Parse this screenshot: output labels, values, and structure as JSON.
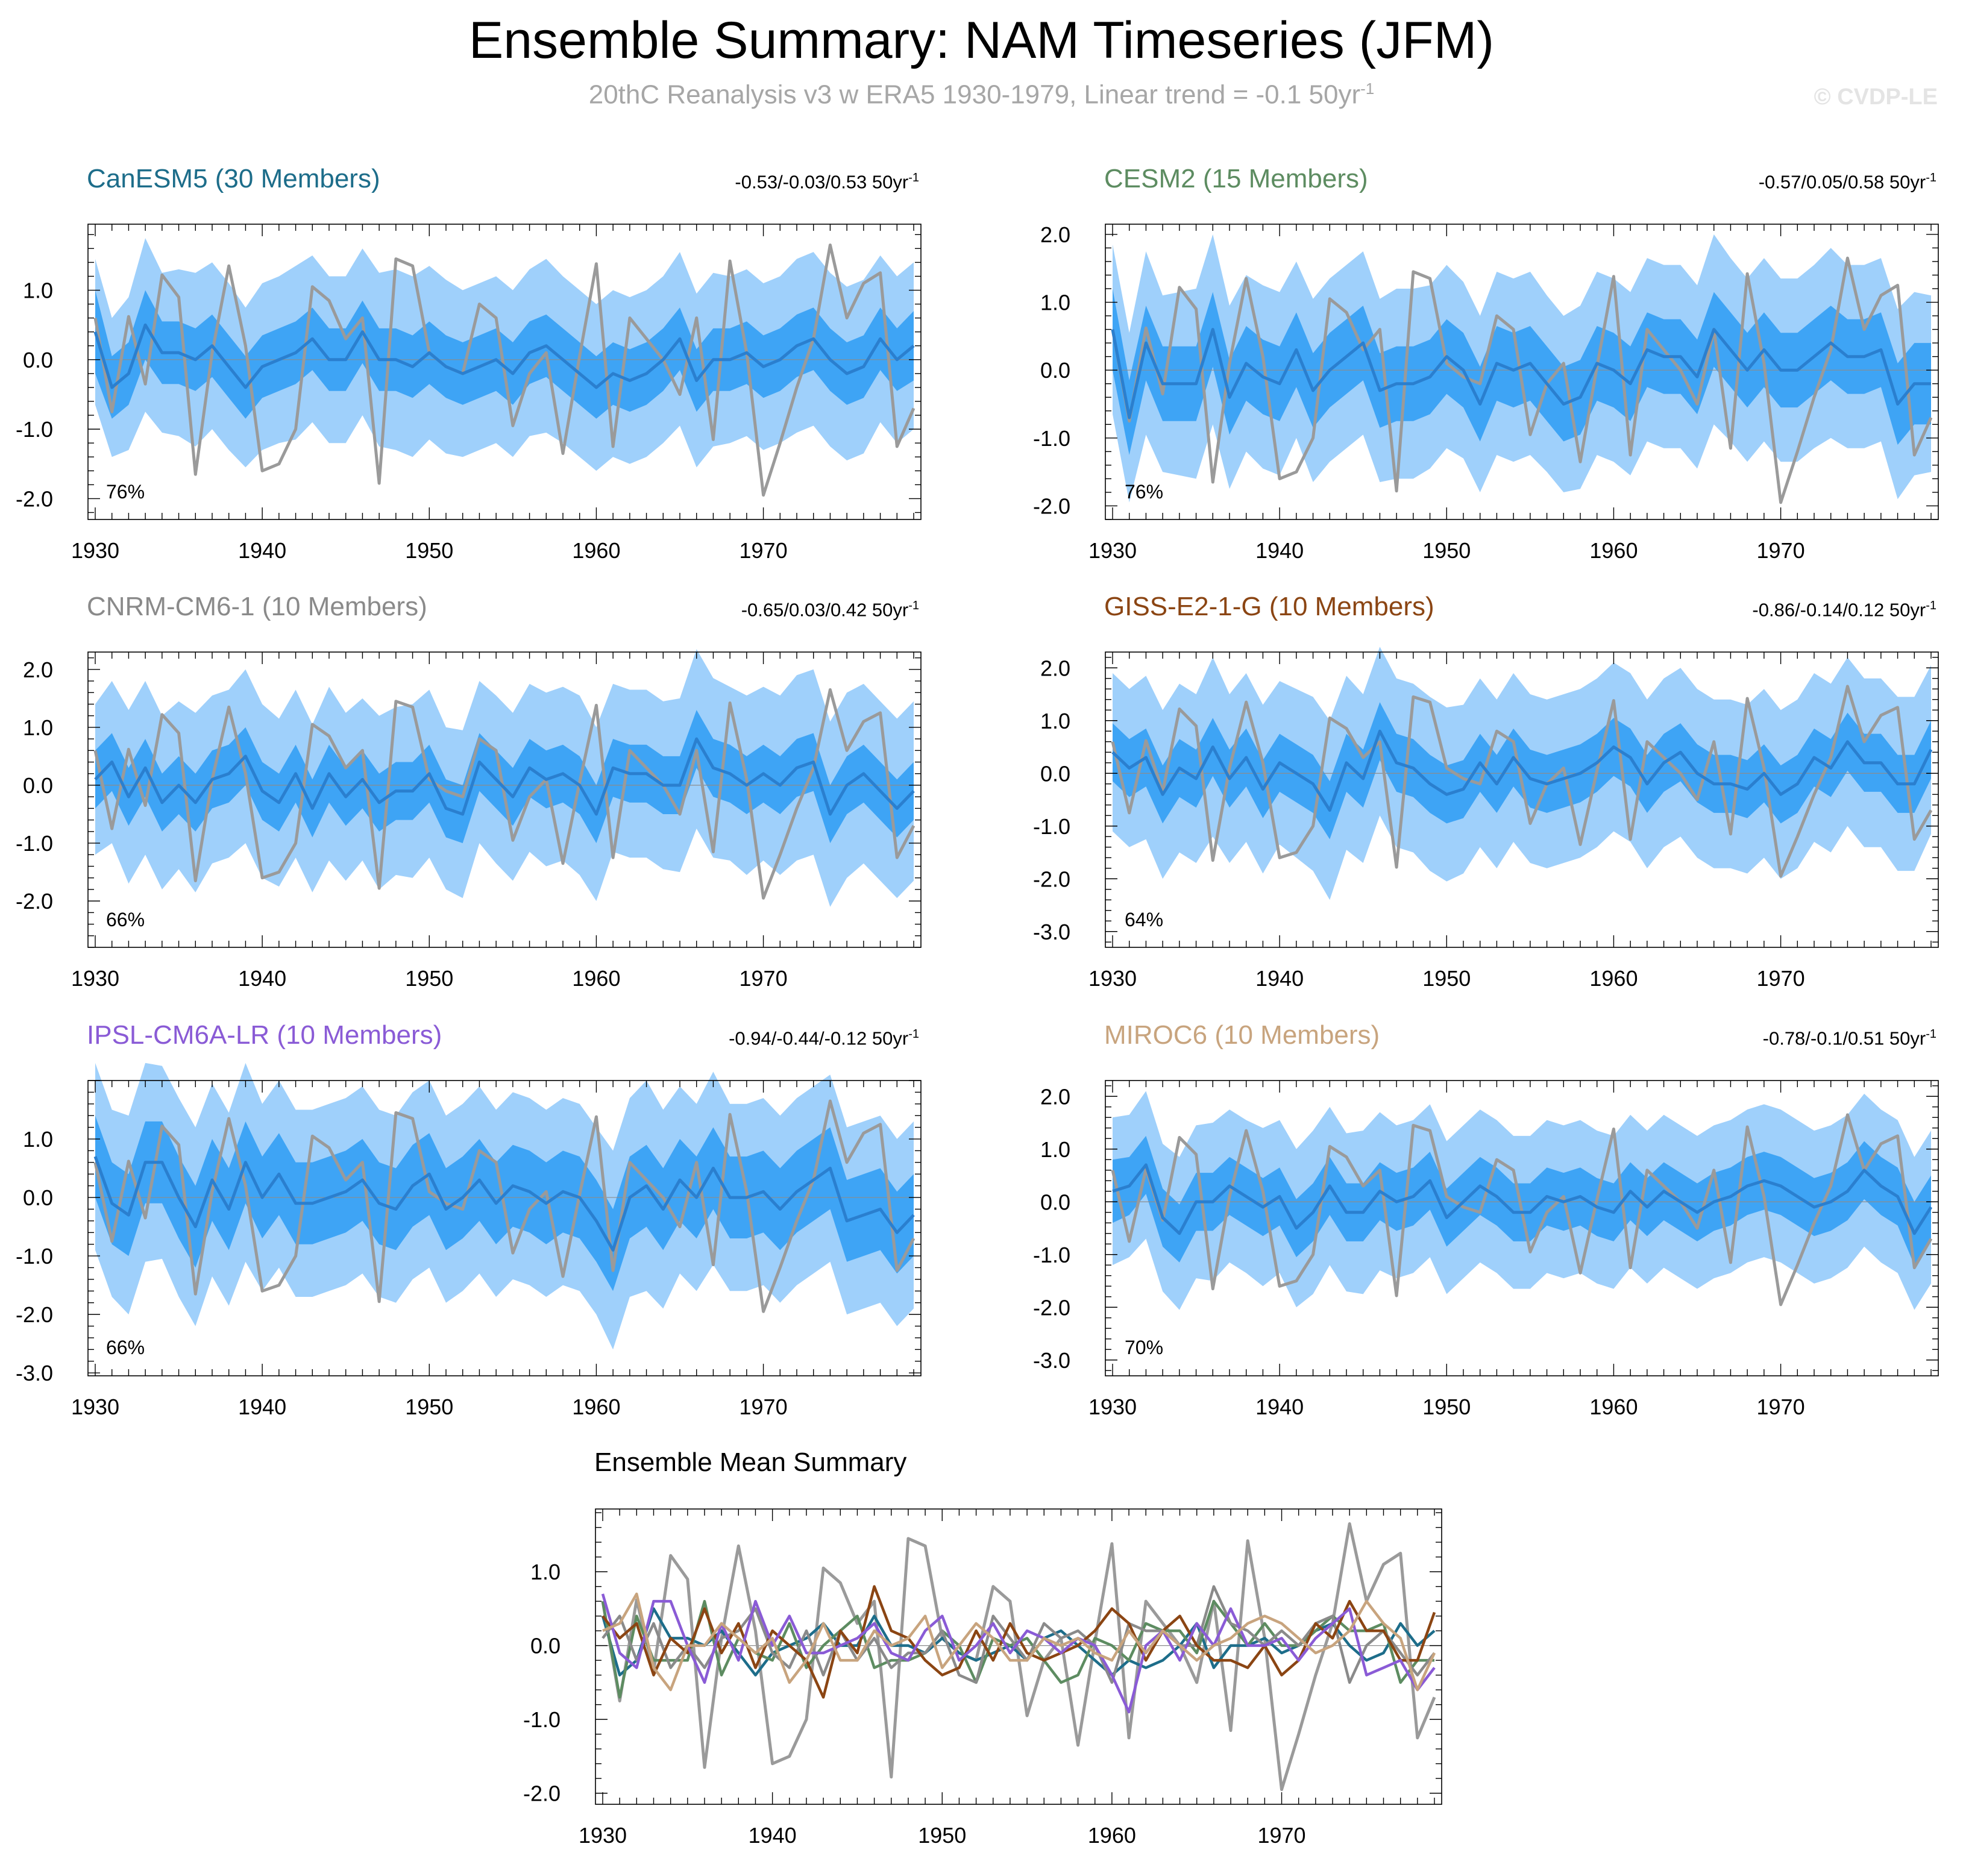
{
  "header": {
    "title": "Ensemble Summary: NAM Timeseries (JFM)",
    "subtitle_main": "20thC Reanalysis v3 w ERA5 1930-1979, Linear trend = -0.1 50yr",
    "subtitle_sup": "-1",
    "credit": "© CVDP-LE"
  },
  "chart_data": {
    "type": "line",
    "x_start": 1930,
    "x_end": 1979,
    "x_ticks": [
      "1930",
      "1940",
      "1950",
      "1960",
      "1970"
    ],
    "observed": {
      "name": "20thC Reanalysis v3 w ERA5",
      "color": "#9a9a9a",
      "values": [
        0.6,
        -0.75,
        0.62,
        -0.35,
        1.22,
        0.9,
        -1.65,
        0.1,
        1.35,
        0.2,
        -1.6,
        -1.5,
        -1.0,
        1.05,
        0.85,
        0.3,
        0.6,
        -1.78,
        1.45,
        1.35,
        0.1,
        -0.1,
        -0.2,
        0.8,
        0.6,
        -0.95,
        -0.2,
        0.1,
        -1.35,
        0.05,
        1.38,
        -1.25,
        0.6,
        0.3,
        0.0,
        -0.5,
        0.6,
        -1.15,
        1.42,
        0.1,
        -1.95,
        -1.2,
        -0.4,
        0.3,
        1.65,
        0.6,
        1.1,
        1.25,
        -1.25,
        -0.7
      ]
    },
    "panels": [
      {
        "name": "CanESM5",
        "title": "CanESM5 (30 Members)",
        "color": "#1d6d8a",
        "range_label": "-0.53/-0.03/0.53 50yr",
        "range_sup": "-1",
        "corr_label": "76%",
        "y_ticks": [
          "1.0",
          "0.0",
          "-1.0",
          "-2.0"
        ],
        "ylim": [
          -2.3,
          1.95
        ],
        "mean": [
          0.4,
          -0.4,
          -0.2,
          0.5,
          0.1,
          0.1,
          0.0,
          0.2,
          -0.1,
          -0.4,
          -0.1,
          0.0,
          0.1,
          0.3,
          0.0,
          0.0,
          0.4,
          0.0,
          0.0,
          -0.1,
          0.1,
          -0.1,
          -0.2,
          -0.1,
          0.0,
          -0.2,
          0.1,
          0.2,
          0.0,
          -0.2,
          -0.4,
          -0.2,
          -0.3,
          -0.2,
          0.0,
          0.3,
          -0.3,
          0.0,
          0.0,
          0.1,
          -0.1,
          0.0,
          0.2,
          0.3,
          0.0,
          -0.2,
          -0.1,
          0.3,
          0.0,
          0.2
        ],
        "band_inner": [
          0.6,
          0.45,
          0.45,
          0.5,
          0.45,
          0.45,
          0.45,
          0.45,
          0.45,
          0.45,
          0.45,
          0.45,
          0.45,
          0.45,
          0.45,
          0.45,
          0.45,
          0.45,
          0.45,
          0.45,
          0.45,
          0.45,
          0.45,
          0.45,
          0.45,
          0.45,
          0.45,
          0.45,
          0.45,
          0.45,
          0.45,
          0.45,
          0.45,
          0.45,
          0.45,
          0.45,
          0.45,
          0.45,
          0.45,
          0.45,
          0.45,
          0.45,
          0.45,
          0.45,
          0.45,
          0.45,
          0.45,
          0.45,
          0.45,
          0.5
        ],
        "band_outer": [
          1.05,
          1.0,
          1.1,
          1.25,
          1.15,
          1.2,
          1.25,
          1.2,
          1.2,
          1.15,
          1.2,
          1.2,
          1.25,
          1.2,
          1.2,
          1.2,
          1.2,
          1.25,
          1.3,
          1.3,
          1.25,
          1.25,
          1.2,
          1.2,
          1.2,
          1.2,
          1.2,
          1.25,
          1.2,
          1.2,
          1.2,
          1.2,
          1.2,
          1.2,
          1.2,
          1.25,
          1.25,
          1.25,
          1.2,
          1.2,
          1.2,
          1.2,
          1.25,
          1.25,
          1.25,
          1.25,
          1.25,
          1.2,
          1.2,
          1.2
        ]
      },
      {
        "name": "CESM2",
        "title": "CESM2 (15 Members)",
        "color": "#5d8c61",
        "range_label": "-0.57/0.05/0.58 50yr",
        "range_sup": "-1",
        "corr_label": "76%",
        "y_ticks": [
          "2.0",
          "1.0",
          "0.0",
          "-1.0",
          "-2.0"
        ],
        "ylim": [
          -2.2,
          2.15
        ],
        "mean": [
          0.6,
          -0.7,
          0.4,
          -0.2,
          -0.2,
          -0.2,
          0.6,
          -0.4,
          0.1,
          -0.1,
          -0.2,
          0.3,
          -0.3,
          0.0,
          0.2,
          0.4,
          -0.3,
          -0.2,
          -0.2,
          -0.1,
          0.2,
          0.0,
          -0.5,
          0.1,
          0.0,
          0.1,
          -0.2,
          -0.5,
          -0.4,
          0.1,
          0.0,
          -0.2,
          0.3,
          0.2,
          0.2,
          -0.1,
          0.6,
          0.3,
          0.0,
          0.3,
          0.0,
          0.0,
          0.2,
          0.4,
          0.2,
          0.2,
          0.3,
          -0.5,
          -0.2,
          -0.2
        ],
        "band_inner": [
          0.6,
          0.55,
          0.55,
          0.55,
          0.55,
          0.55,
          0.55,
          0.55,
          0.55,
          0.55,
          0.55,
          0.55,
          0.55,
          0.55,
          0.55,
          0.55,
          0.55,
          0.55,
          0.55,
          0.55,
          0.55,
          0.55,
          0.55,
          0.55,
          0.55,
          0.55,
          0.55,
          0.55,
          0.55,
          0.55,
          0.55,
          0.55,
          0.55,
          0.55,
          0.55,
          0.55,
          0.55,
          0.55,
          0.55,
          0.55,
          0.55,
          0.55,
          0.55,
          0.55,
          0.55,
          0.55,
          0.55,
          0.6,
          0.6,
          0.6
        ],
        "band_outer": [
          1.25,
          1.25,
          1.35,
          1.3,
          1.35,
          1.4,
          1.4,
          1.35,
          1.3,
          1.35,
          1.35,
          1.3,
          1.35,
          1.35,
          1.35,
          1.35,
          1.35,
          1.4,
          1.4,
          1.35,
          1.35,
          1.3,
          1.3,
          1.35,
          1.35,
          1.35,
          1.3,
          1.3,
          1.35,
          1.35,
          1.35,
          1.35,
          1.35,
          1.35,
          1.35,
          1.35,
          1.4,
          1.35,
          1.35,
          1.35,
          1.35,
          1.35,
          1.35,
          1.4,
          1.35,
          1.35,
          1.35,
          1.4,
          1.35,
          1.3
        ]
      },
      {
        "name": "CNRM-CM6-1",
        "title": "CNRM-CM6-1 (10 Members)",
        "color": "#8a8a8a",
        "range_label": "-0.65/0.03/0.42 50yr",
        "range_sup": "-1",
        "corr_label": "66%",
        "y_ticks": [
          "2.0",
          "1.0",
          "0.0",
          "-1.0",
          "-2.0"
        ],
        "ylim": [
          -2.8,
          2.3
        ],
        "mean": [
          0.1,
          0.4,
          -0.2,
          0.3,
          -0.3,
          0.0,
          -0.3,
          0.1,
          0.2,
          0.5,
          -0.1,
          -0.3,
          0.2,
          -0.4,
          0.2,
          -0.2,
          0.1,
          -0.3,
          -0.1,
          -0.1,
          0.2,
          -0.4,
          -0.5,
          0.4,
          0.1,
          -0.2,
          0.3,
          0.1,
          0.2,
          0.0,
          -0.5,
          0.3,
          0.2,
          0.2,
          0.0,
          0.0,
          0.8,
          0.3,
          0.2,
          0.0,
          0.2,
          0.0,
          0.3,
          0.4,
          -0.5,
          0.0,
          0.2,
          -0.1,
          -0.4,
          -0.1
        ],
        "band_inner": [
          0.5,
          0.5,
          0.5,
          0.5,
          0.5,
          0.5,
          0.5,
          0.5,
          0.5,
          0.5,
          0.5,
          0.5,
          0.5,
          0.5,
          0.5,
          0.5,
          0.5,
          0.5,
          0.5,
          0.5,
          0.5,
          0.5,
          0.5,
          0.5,
          0.5,
          0.5,
          0.5,
          0.5,
          0.5,
          0.5,
          0.5,
          0.5,
          0.5,
          0.5,
          0.5,
          0.5,
          0.5,
          0.5,
          0.5,
          0.5,
          0.5,
          0.5,
          0.5,
          0.5,
          0.5,
          0.5,
          0.5,
          0.5,
          0.5,
          0.5
        ],
        "band_outer": [
          1.3,
          1.4,
          1.5,
          1.5,
          1.5,
          1.45,
          1.55,
          1.45,
          1.45,
          1.5,
          1.5,
          1.45,
          1.45,
          1.45,
          1.5,
          1.45,
          1.4,
          1.5,
          1.45,
          1.5,
          1.45,
          1.4,
          1.45,
          1.4,
          1.45,
          1.45,
          1.45,
          1.5,
          1.5,
          1.55,
          1.5,
          1.45,
          1.45,
          1.45,
          1.45,
          1.5,
          1.55,
          1.55,
          1.5,
          1.55,
          1.5,
          1.55,
          1.6,
          1.6,
          1.6,
          1.6,
          1.55,
          1.55,
          1.55,
          1.55
        ]
      },
      {
        "name": "GISS-E2-1-G",
        "title": "GISS-E2-1-G (10 Members)",
        "color": "#8b4513",
        "range_label": "-0.86/-0.14/0.12 50yr",
        "range_sup": "-1",
        "corr_label": "64%",
        "y_ticks": [
          "2.0",
          "1.0",
          "0.0",
          "-1.0",
          "-2.0",
          "-3.0"
        ],
        "ylim": [
          -3.3,
          2.3
        ],
        "mean": [
          0.4,
          0.1,
          0.3,
          -0.4,
          0.1,
          -0.1,
          0.5,
          -0.1,
          0.3,
          -0.3,
          0.2,
          0.0,
          -0.2,
          -0.7,
          0.2,
          -0.1,
          0.8,
          0.2,
          0.1,
          -0.2,
          -0.4,
          -0.3,
          0.2,
          -0.2,
          0.3,
          -0.1,
          -0.2,
          -0.1,
          0.0,
          0.2,
          0.5,
          0.3,
          -0.2,
          0.2,
          0.4,
          0.0,
          -0.2,
          -0.2,
          -0.3,
          0.0,
          -0.4,
          -0.2,
          0.3,
          0.1,
          0.6,
          0.2,
          0.2,
          -0.2,
          -0.2,
          0.45
        ],
        "band_inner": [
          0.55,
          0.55,
          0.55,
          0.55,
          0.55,
          0.55,
          0.55,
          0.55,
          0.55,
          0.55,
          0.55,
          0.55,
          0.55,
          0.55,
          0.55,
          0.55,
          0.55,
          0.55,
          0.55,
          0.55,
          0.55,
          0.55,
          0.55,
          0.55,
          0.55,
          0.55,
          0.55,
          0.55,
          0.55,
          0.55,
          0.55,
          0.55,
          0.55,
          0.55,
          0.55,
          0.55,
          0.55,
          0.55,
          0.55,
          0.55,
          0.55,
          0.55,
          0.55,
          0.55,
          0.55,
          0.55,
          0.55,
          0.55,
          0.55,
          0.55
        ],
        "band_outer": [
          1.5,
          1.5,
          1.55,
          1.6,
          1.6,
          1.6,
          1.7,
          1.6,
          1.6,
          1.6,
          1.55,
          1.6,
          1.65,
          1.7,
          1.65,
          1.6,
          1.6,
          1.6,
          1.6,
          1.65,
          1.65,
          1.6,
          1.6,
          1.6,
          1.6,
          1.6,
          1.6,
          1.6,
          1.6,
          1.6,
          1.6,
          1.6,
          1.6,
          1.6,
          1.6,
          1.6,
          1.6,
          1.6,
          1.6,
          1.6,
          1.6,
          1.6,
          1.6,
          1.6,
          1.6,
          1.6,
          1.6,
          1.65,
          1.65,
          1.6
        ]
      },
      {
        "name": "IPSL-CM6A-LR",
        "title": "IPSL-CM6A-LR (10 Members)",
        "color": "#8a5bd6",
        "range_label": "-0.94/-0.44/-0.12 50yr",
        "range_sup": "-1",
        "corr_label": "66%",
        "y_ticks": [
          "1.0",
          "0.0",
          "-1.0",
          "-2.0",
          "-3.0"
        ],
        "ylim": [
          -3.05,
          2.0
        ],
        "mean": [
          0.7,
          -0.1,
          -0.3,
          0.6,
          0.6,
          0.0,
          -0.5,
          0.3,
          -0.2,
          0.6,
          0.0,
          0.4,
          -0.1,
          -0.1,
          0.0,
          0.1,
          0.3,
          -0.1,
          -0.2,
          0.2,
          0.4,
          -0.2,
          0.0,
          0.3,
          -0.1,
          0.2,
          0.1,
          -0.1,
          0.1,
          0.0,
          -0.4,
          -0.9,
          0.0,
          0.2,
          -0.2,
          0.3,
          0.0,
          0.5,
          0.0,
          0.0,
          0.1,
          -0.2,
          0.1,
          0.3,
          0.5,
          -0.4,
          -0.3,
          -0.2,
          -0.6,
          -0.3
        ],
        "band_inner": [
          0.7,
          0.7,
          0.7,
          0.7,
          0.7,
          0.7,
          0.7,
          0.7,
          0.7,
          0.7,
          0.7,
          0.7,
          0.7,
          0.7,
          0.7,
          0.7,
          0.7,
          0.7,
          0.7,
          0.7,
          0.7,
          0.7,
          0.7,
          0.7,
          0.7,
          0.7,
          0.7,
          0.7,
          0.7,
          0.7,
          0.7,
          0.7,
          0.7,
          0.7,
          0.7,
          0.7,
          0.7,
          0.7,
          0.7,
          0.7,
          0.7,
          0.7,
          0.7,
          0.7,
          0.7,
          0.7,
          0.7,
          0.7,
          0.7,
          0.7
        ],
        "band_outer": [
          1.6,
          1.6,
          1.7,
          1.7,
          1.65,
          1.7,
          1.7,
          1.65,
          1.65,
          1.7,
          1.6,
          1.6,
          1.6,
          1.6,
          1.6,
          1.6,
          1.6,
          1.6,
          1.6,
          1.6,
          1.6,
          1.6,
          1.6,
          1.6,
          1.6,
          1.6,
          1.6,
          1.6,
          1.6,
          1.6,
          1.6,
          1.7,
          1.7,
          1.8,
          1.7,
          1.6,
          1.6,
          1.65,
          1.6,
          1.6,
          1.6,
          1.6,
          1.6,
          1.6,
          1.6,
          1.6,
          1.6,
          1.6,
          1.6,
          1.6
        ]
      },
      {
        "name": "MIROC6",
        "title": "MIROC6 (10 Members)",
        "color": "#c8a47e",
        "range_label": "-0.78/-0.1/0.51 50yr",
        "range_sup": "-1",
        "corr_label": "70%",
        "y_ticks": [
          "2.0",
          "1.0",
          "0.0",
          "-1.0",
          "-2.0",
          "-3.0"
        ],
        "ylim": [
          -3.3,
          2.3
        ],
        "mean": [
          0.2,
          0.3,
          0.7,
          -0.3,
          -0.6,
          0.0,
          0.0,
          0.3,
          0.1,
          -0.1,
          0.1,
          -0.5,
          -0.2,
          0.3,
          -0.2,
          -0.2,
          0.2,
          0.0,
          0.1,
          0.4,
          -0.3,
          0.0,
          0.3,
          0.1,
          -0.2,
          -0.2,
          0.1,
          0.0,
          0.1,
          -0.1,
          -0.2,
          0.2,
          -0.1,
          0.2,
          0.0,
          -0.2,
          0.0,
          0.1,
          0.3,
          0.4,
          0.3,
          0.1,
          -0.1,
          0.0,
          0.2,
          0.6,
          0.3,
          0.1,
          -0.6,
          -0.1
        ],
        "band_inner": [
          0.6,
          0.55,
          0.55,
          0.55,
          0.55,
          0.55,
          0.55,
          0.55,
          0.55,
          0.55,
          0.55,
          0.55,
          0.55,
          0.55,
          0.55,
          0.55,
          0.55,
          0.55,
          0.55,
          0.55,
          0.55,
          0.55,
          0.55,
          0.55,
          0.55,
          0.55,
          0.55,
          0.55,
          0.55,
          0.55,
          0.55,
          0.55,
          0.55,
          0.55,
          0.55,
          0.55,
          0.55,
          0.55,
          0.55,
          0.55,
          0.55,
          0.55,
          0.55,
          0.55,
          0.55,
          0.55,
          0.55,
          0.55,
          0.6,
          0.6
        ],
        "band_outer": [
          1.4,
          1.35,
          1.4,
          1.4,
          1.45,
          1.45,
          1.5,
          1.45,
          1.45,
          1.5,
          1.45,
          1.5,
          1.55,
          1.5,
          1.5,
          1.55,
          1.5,
          1.45,
          1.45,
          1.45,
          1.45,
          1.45,
          1.45,
          1.45,
          1.45,
          1.45,
          1.45,
          1.45,
          1.45,
          1.45,
          1.45,
          1.45,
          1.45,
          1.45,
          1.45,
          1.45,
          1.45,
          1.45,
          1.45,
          1.45,
          1.45,
          1.45,
          1.45,
          1.45,
          1.45,
          1.45,
          1.45,
          1.45,
          1.45,
          1.45
        ]
      }
    ],
    "summary": {
      "title": "Ensemble Mean Summary",
      "y_ticks": [
        "1.0",
        "0.0",
        "-1.0",
        "-2.0"
      ],
      "ylim": [
        -2.15,
        1.85
      ]
    }
  }
}
